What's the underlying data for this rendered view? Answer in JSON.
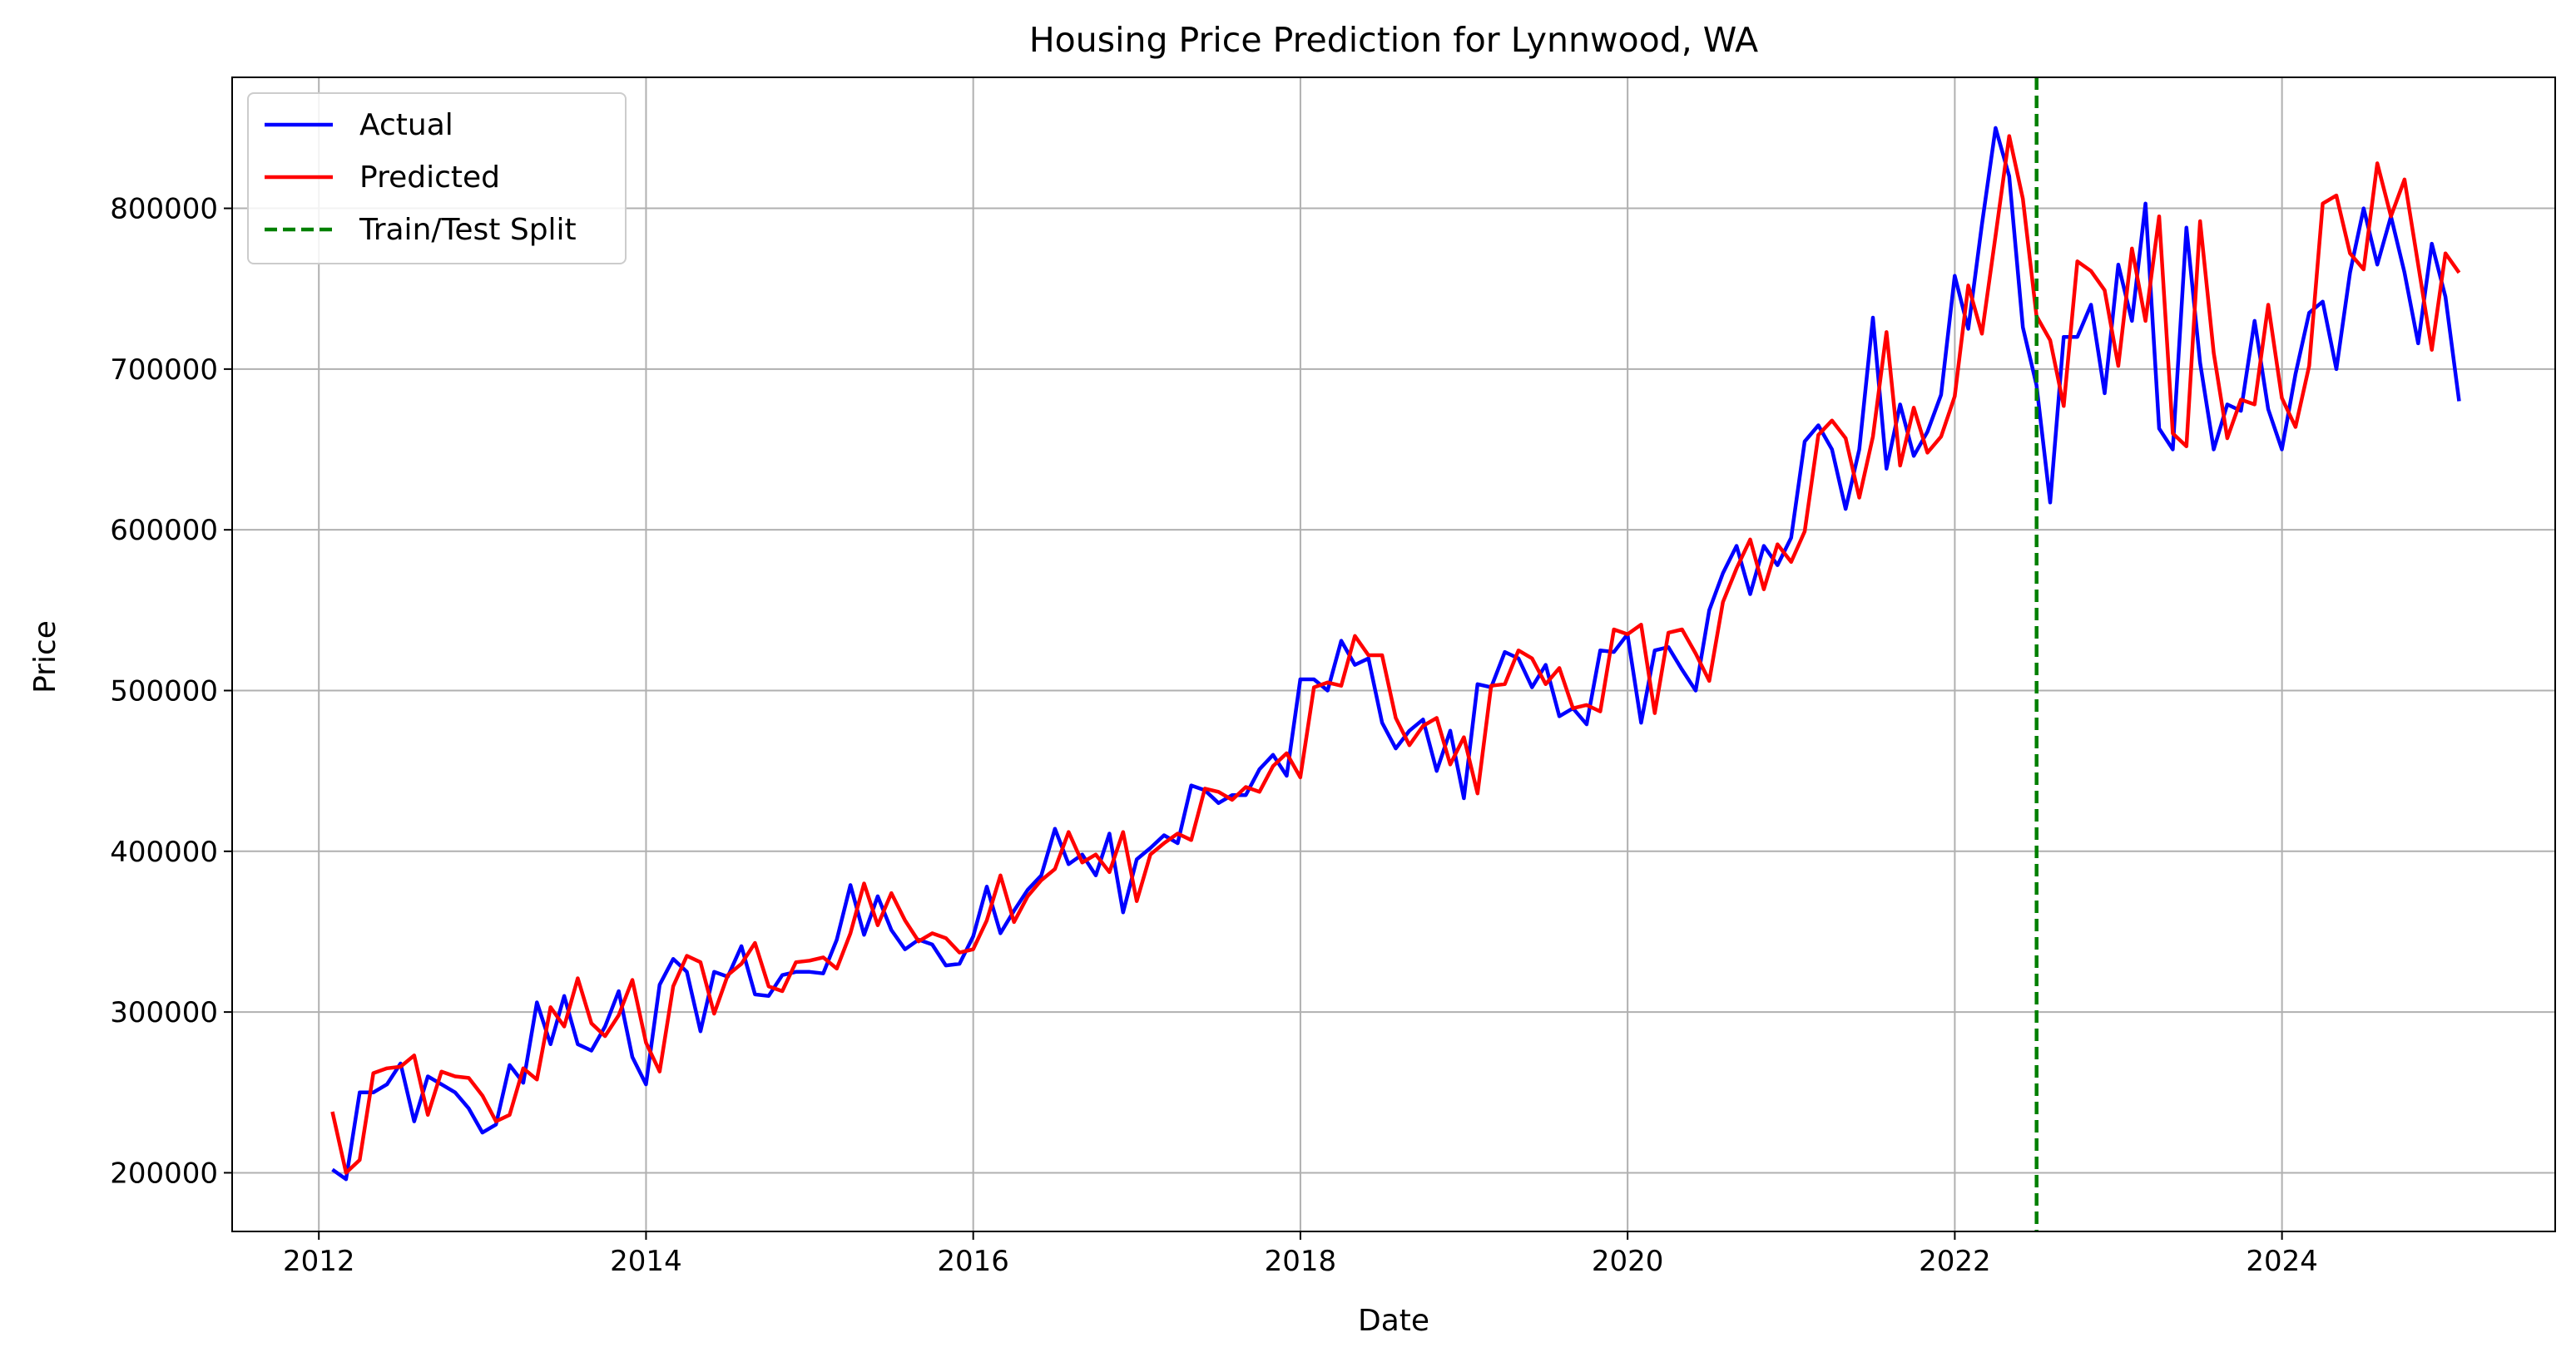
{
  "chart_data": {
    "type": "line",
    "title": "Housing Price Prediction for Lynnwood, WA",
    "xlabel": "Date",
    "ylabel": "Price",
    "xlim": [
      2011.47,
      2025.67
    ],
    "ylim": [
      163500,
      881500
    ],
    "x_ticks": [
      2012,
      2014,
      2016,
      2018,
      2020,
      2022,
      2024
    ],
    "x_tick_labels": [
      "2012",
      "2014",
      "2016",
      "2018",
      "2020",
      "2022",
      "2024"
    ],
    "y_ticks": [
      200000,
      300000,
      400000,
      500000,
      600000,
      700000,
      800000
    ],
    "y_tick_labels": [
      "200000",
      "300000",
      "400000",
      "500000",
      "600000",
      "700000",
      "800000"
    ],
    "grid": true,
    "legend_position": "top-left",
    "split_line": {
      "x": 2022.5,
      "label": "Train/Test Split",
      "color": "#008000"
    },
    "series": [
      {
        "name": "Actual",
        "color": "#0000ff",
        "x_start": 2012.083,
        "step": 0.08333,
        "values": [
          202000,
          196000,
          250000,
          250000,
          255000,
          268000,
          232000,
          260000,
          255000,
          250000,
          240000,
          225000,
          230000,
          267000,
          256000,
          306000,
          280000,
          310000,
          280000,
          276000,
          291000,
          313000,
          272000,
          255000,
          317000,
          333000,
          325000,
          288000,
          325000,
          322000,
          341000,
          311000,
          310000,
          323000,
          325000,
          325000,
          324000,
          345000,
          379000,
          348000,
          372000,
          351000,
          339000,
          345000,
          342000,
          329000,
          330000,
          347000,
          378000,
          349000,
          363000,
          376000,
          385000,
          414000,
          392000,
          398000,
          385000,
          411000,
          362000,
          395000,
          402000,
          410000,
          405000,
          441000,
          438000,
          430000,
          435000,
          435000,
          451000,
          460000,
          447000,
          507000,
          507000,
          500000,
          531000,
          516000,
          520000,
          480000,
          464000,
          475000,
          482000,
          450000,
          475000,
          433000,
          504000,
          502000,
          524000,
          520000,
          502000,
          516000,
          484000,
          489000,
          479000,
          525000,
          524000,
          535000,
          480000,
          525000,
          527000,
          513000,
          500000,
          550000,
          573000,
          590000,
          560000,
          590000,
          578000,
          595000,
          655000,
          665000,
          650000,
          613000,
          650000,
          732000,
          638000,
          678000,
          646000,
          661000,
          684000,
          758000,
          725000,
          790000,
          850000,
          820000,
          726000,
          690000,
          617000,
          720000,
          720000,
          740000,
          685000,
          765000,
          730000,
          803000,
          663000,
          650000,
          788000,
          704000,
          650000,
          678000,
          674000,
          730000,
          675000,
          650000,
          697000,
          735000,
          742000,
          700000,
          760000,
          800000,
          765000,
          795000,
          760000,
          716000,
          778000,
          745000,
          680000
        ]
      },
      {
        "name": "Predicted",
        "color": "#ff0000",
        "x_start": 2012.083,
        "step": 0.08333,
        "values": [
          238000,
          200000,
          208000,
          262000,
          265000,
          266000,
          273000,
          236000,
          263000,
          260000,
          259000,
          248000,
          232000,
          236000,
          265000,
          258000,
          303000,
          291000,
          321000,
          293000,
          285000,
          298000,
          320000,
          281000,
          263000,
          316000,
          335000,
          331000,
          299000,
          323000,
          330000,
          343000,
          316000,
          313000,
          331000,
          332000,
          334000,
          327000,
          349000,
          380000,
          354000,
          374000,
          357000,
          344000,
          349000,
          346000,
          337000,
          339000,
          357000,
          385000,
          356000,
          372000,
          382000,
          389000,
          412000,
          393000,
          398000,
          387000,
          412000,
          369000,
          398000,
          405000,
          411000,
          407000,
          439000,
          437000,
          432000,
          440000,
          437000,
          453000,
          461000,
          446000,
          502000,
          505000,
          503000,
          534000,
          522000,
          522000,
          483000,
          466000,
          478000,
          483000,
          454000,
          471000,
          436000,
          503000,
          504000,
          525000,
          520000,
          504000,
          514000,
          489000,
          491000,
          487000,
          538000,
          535000,
          541000,
          486000,
          536000,
          538000,
          523000,
          506000,
          555000,
          576000,
          594000,
          563000,
          591000,
          580000,
          599000,
          659000,
          668000,
          657000,
          620000,
          658000,
          723000,
          640000,
          676000,
          648000,
          658000,
          683000,
          752000,
          722000,
          783000,
          845000,
          806000,
          733000,
          718000,
          677000,
          767000,
          761000,
          749000,
          702000,
          775000,
          730000,
          795000,
          660000,
          652000,
          792000,
          710000,
          657000,
          681000,
          678000,
          740000,
          682000,
          664000,
          702000,
          803000,
          808000,
          772000,
          762000,
          828000,
          795000,
          818000,
          765000,
          712000,
          772000,
          760000
        ]
      }
    ]
  }
}
